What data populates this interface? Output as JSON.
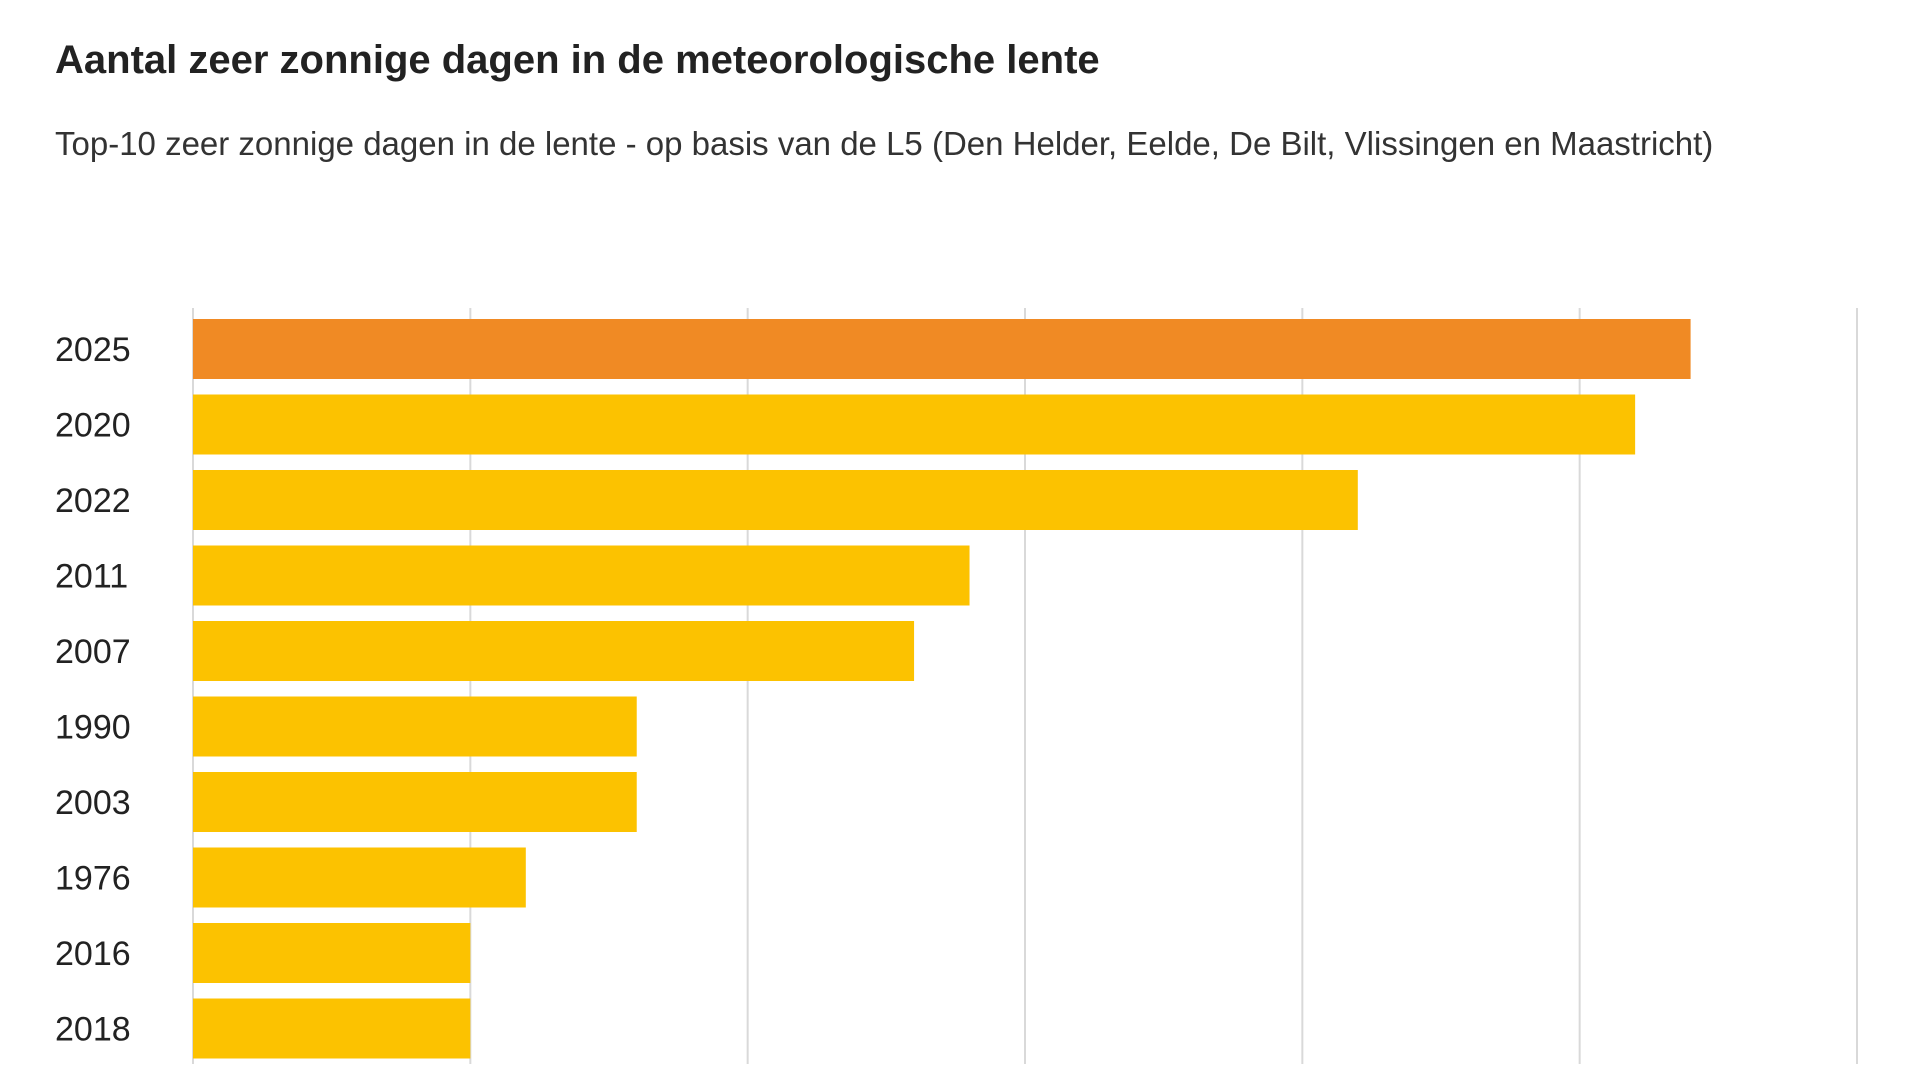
{
  "chart_data": {
    "type": "bar",
    "orientation": "horizontal",
    "title": "Aantal zeer zonnige dagen in de meteorologische lente",
    "subtitle": "Top-10 zeer zonnige dagen in de lente - op basis van de L5 (Den Helder, Eelde, De Bilt, Vlissingen en Maastricht)",
    "categories": [
      "2025",
      "2020",
      "2022",
      "2011",
      "2007",
      "1990",
      "2003",
      "1976",
      "2016",
      "2018"
    ],
    "values": [
      27,
      26,
      21,
      14,
      13,
      8,
      8,
      6,
      5,
      5
    ],
    "xlim": [
      0,
      30
    ],
    "grid": true,
    "legend": "none",
    "highlight_category": "2025",
    "colors": {
      "bar": "#fcc200",
      "highlight": "#f08a24",
      "grid": "#d9d9d9",
      "text": "#222222"
    }
  }
}
